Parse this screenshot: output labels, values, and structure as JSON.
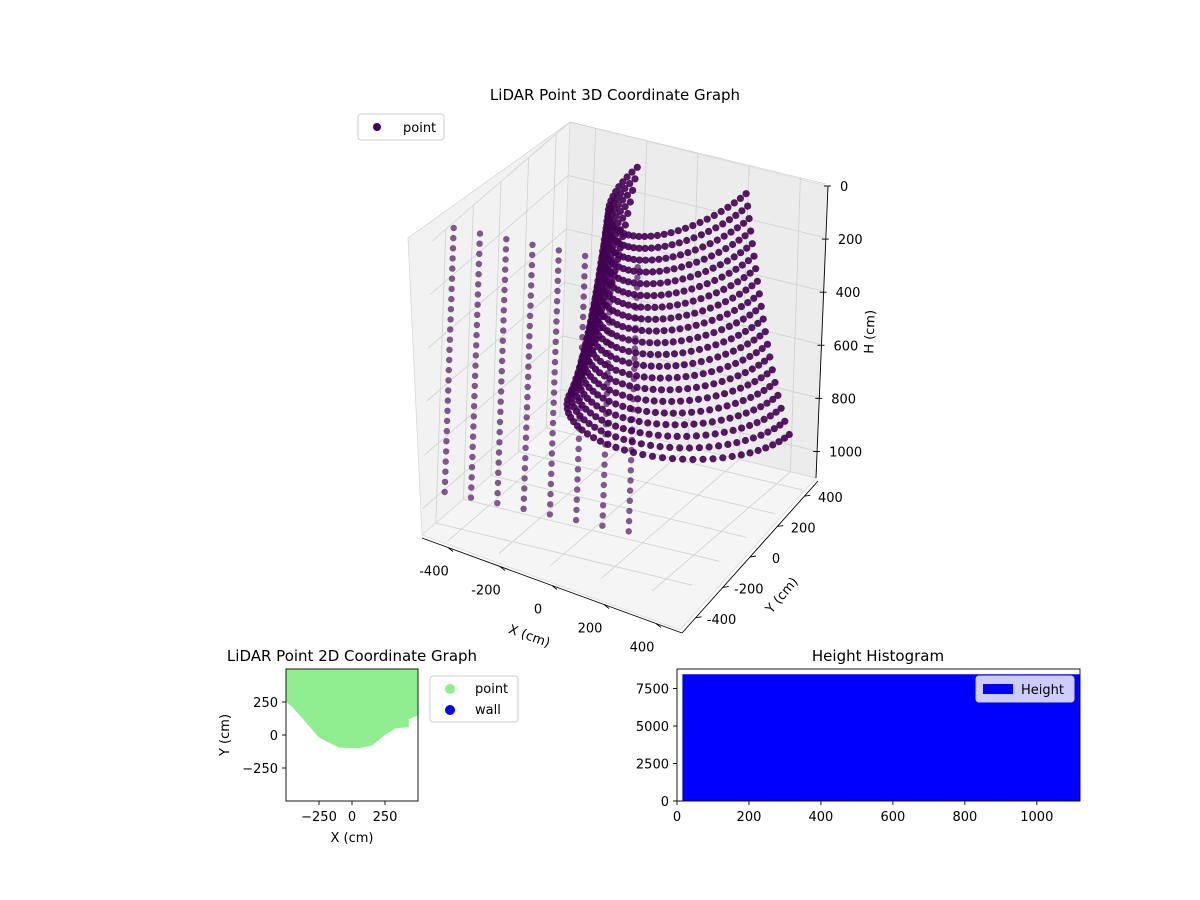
{
  "chart_data": [
    {
      "type": "scatter3d",
      "title": "LiDAR Point 3D Coordinate Graph",
      "xlabel": "X (cm)",
      "ylabel": "Y (cm)",
      "zlabel": "H (cm)",
      "xlim": [
        -500,
        500
      ],
      "ylim": [
        -500,
        500
      ],
      "zlim": [
        0,
        1100
      ],
      "z_inverted": true,
      "x_ticks": [
        "-400",
        "-200",
        "0",
        "200",
        "400"
      ],
      "y_ticks": [
        "-400",
        "-200",
        "0",
        "200",
        "400"
      ],
      "z_ticks": [
        "0",
        "200",
        "400",
        "600",
        "800",
        "1000"
      ],
      "grid": true,
      "legend": {
        "placement": "upper-left",
        "entries": [
          "point"
        ]
      },
      "series": [
        {
          "name": "point",
          "color": "#440154",
          "description_values": {
            "bowl": {
              "x_range": [
                -450,
                450
              ],
              "y_range": [
                -100,
                500
              ],
              "h_range": [
                50,
                950
              ]
            },
            "columns_x": [
              -480,
              -380,
              -280,
              -180,
              -80,
              20,
              120,
              220
            ],
            "column_h_range": [
              0,
              1000
            ]
          }
        }
      ]
    },
    {
      "type": "scatter",
      "title": "LiDAR Point 2D Coordinate Graph",
      "xlabel": "X (cm)",
      "ylabel": "Y (cm)",
      "xlim": [
        -500,
        500
      ],
      "ylim": [
        -500,
        500
      ],
      "x_ticks": [
        "−250",
        "0",
        "250"
      ],
      "y_ticks": [
        "250",
        "0",
        "−250"
      ],
      "legend": {
        "placement": "outside-right",
        "entries": [
          "point",
          "wall"
        ]
      },
      "series": [
        {
          "name": "point",
          "color": "#90ee90",
          "boundary": [
            [
              -500,
              500
            ],
            [
              500,
              500
            ],
            [
              500,
              150
            ],
            [
              430,
              120
            ],
            [
              430,
              60
            ],
            [
              330,
              50
            ],
            [
              250,
              0
            ],
            [
              150,
              -80
            ],
            [
              50,
              -100
            ],
            [
              -100,
              -95
            ],
            [
              -250,
              -20
            ],
            [
              -370,
              120
            ],
            [
              -460,
              220
            ],
            [
              -500,
              250
            ]
          ]
        },
        {
          "name": "wall",
          "color": "#0000ff",
          "values": []
        }
      ]
    },
    {
      "type": "histogram",
      "title": "Height Histogram",
      "xlim": [
        0,
        1120
      ],
      "ylim": [
        0,
        8800
      ],
      "x_ticks": [
        "0",
        "200",
        "400",
        "600",
        "800",
        "1000"
      ],
      "y_ticks": [
        "0",
        "2500",
        "5000",
        "7500"
      ],
      "legend": {
        "placement": "upper-right",
        "entries": [
          "Height"
        ]
      },
      "series": [
        {
          "name": "Height",
          "color": "#0000ff",
          "bin_range": [
            15,
            1120
          ],
          "count": 8450
        }
      ]
    }
  ]
}
